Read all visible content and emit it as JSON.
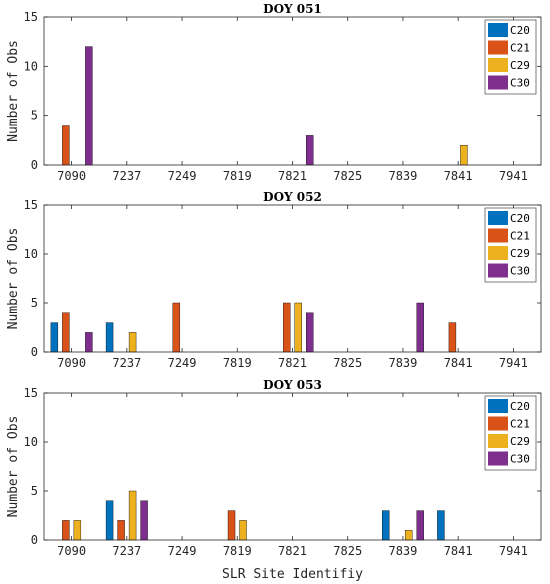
{
  "chart_data": [
    {
      "type": "bar",
      "title": "DOY 051",
      "xlabel": "",
      "ylabel": "Number of Obs",
      "ylim": [
        0,
        15
      ],
      "yticks": [
        0,
        5,
        10,
        15
      ],
      "categories": [
        "7090",
        "7237",
        "7249",
        "7819",
        "7821",
        "7825",
        "7839",
        "7841",
        "7941"
      ],
      "legend_position": "top-right",
      "grid": false,
      "series": [
        {
          "name": "C20",
          "color": "#0072BD",
          "values": [
            0,
            0,
            0,
            0,
            0,
            0,
            0,
            0,
            0
          ]
        },
        {
          "name": "C21",
          "color": "#D95319",
          "values": [
            4,
            0,
            0,
            0,
            0,
            0,
            0,
            0,
            0
          ]
        },
        {
          "name": "C29",
          "color": "#EDB120",
          "values": [
            0,
            0,
            0,
            0,
            0,
            0,
            0,
            2,
            0
          ]
        },
        {
          "name": "C30",
          "color": "#7E2F8E",
          "values": [
            12,
            0,
            0,
            0,
            3,
            0,
            0,
            0,
            0
          ]
        }
      ]
    },
    {
      "type": "bar",
      "title": "DOY 052",
      "xlabel": "",
      "ylabel": "Number of Obs",
      "ylim": [
        0,
        15
      ],
      "yticks": [
        0,
        5,
        10,
        15
      ],
      "categories": [
        "7090",
        "7237",
        "7249",
        "7819",
        "7821",
        "7825",
        "7839",
        "7841",
        "7941"
      ],
      "legend_position": "top-right",
      "grid": false,
      "series": [
        {
          "name": "C20",
          "color": "#0072BD",
          "values": [
            3,
            3,
            0,
            0,
            0,
            0,
            0,
            0,
            0
          ]
        },
        {
          "name": "C21",
          "color": "#D95319",
          "values": [
            4,
            0,
            5,
            0,
            5,
            0,
            0,
            3,
            0
          ]
        },
        {
          "name": "C29",
          "color": "#EDB120",
          "values": [
            0,
            2,
            0,
            0,
            5,
            0,
            0,
            0,
            0
          ]
        },
        {
          "name": "C30",
          "color": "#7E2F8E",
          "values": [
            2,
            0,
            0,
            0,
            4,
            0,
            5,
            0,
            0
          ]
        }
      ]
    },
    {
      "type": "bar",
      "title": "DOY 053",
      "xlabel": "SLR Site Identifiy",
      "ylabel": "Number of Obs",
      "ylim": [
        0,
        15
      ],
      "yticks": [
        0,
        5,
        10,
        15
      ],
      "categories": [
        "7090",
        "7237",
        "7249",
        "7819",
        "7821",
        "7825",
        "7839",
        "7841",
        "7941"
      ],
      "legend_position": "top-right",
      "grid": false,
      "series": [
        {
          "name": "C20",
          "color": "#0072BD",
          "values": [
            0,
            4,
            0,
            0,
            0,
            0,
            3,
            3,
            0
          ]
        },
        {
          "name": "C21",
          "color": "#D95319",
          "values": [
            2,
            2,
            0,
            3,
            0,
            0,
            0,
            0,
            0
          ]
        },
        {
          "name": "C29",
          "color": "#EDB120",
          "values": [
            2,
            5,
            0,
            2,
            0,
            0,
            1,
            0,
            0
          ]
        },
        {
          "name": "C30",
          "color": "#7E2F8E",
          "values": [
            0,
            4,
            0,
            0,
            0,
            0,
            3,
            0,
            0
          ]
        }
      ]
    }
  ]
}
